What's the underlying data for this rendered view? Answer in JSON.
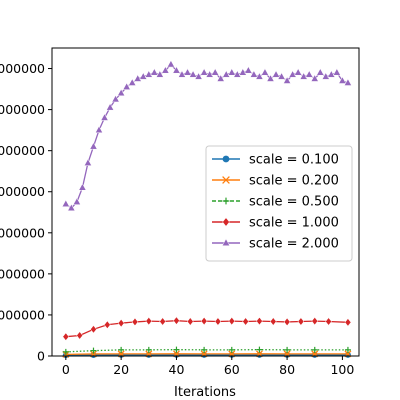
{
  "chart_data": {
    "type": "line",
    "title": "",
    "xlabel": "Iterations",
    "ylabel": "",
    "xlim": [
      -5,
      106
    ],
    "ylim": [
      0,
      7500000
    ],
    "x_ticks": [
      0,
      20,
      40,
      60,
      80,
      100
    ],
    "x_tick_labels": [
      "0",
      "20",
      "40",
      "60",
      "80",
      "100"
    ],
    "y_ticks": [
      0,
      1000000,
      2000000,
      3000000,
      4000000,
      5000000,
      6000000,
      7000000
    ],
    "y_tick_labels": [
      "0",
      "000000",
      "000000",
      "000000",
      "000000",
      "000000",
      "000000",
      "000000"
    ],
    "grid": false,
    "legend_placement": "center-right",
    "series": [
      {
        "name": "scale = 0.100",
        "color": "#1f77b4",
        "marker": "circle",
        "x": [
          0,
          10,
          20,
          30,
          40,
          50,
          60,
          70,
          80,
          90,
          102
        ],
        "y": [
          20000,
          25000,
          26000,
          26000,
          27000,
          26000,
          26000,
          27000,
          26000,
          26000,
          26000
        ]
      },
      {
        "name": "scale = 0.200",
        "color": "#ff7f0e",
        "marker": "x",
        "x": [
          0,
          10,
          20,
          30,
          40,
          50,
          60,
          70,
          80,
          90,
          102
        ],
        "y": [
          40000,
          50000,
          52000,
          52000,
          53000,
          52000,
          52000,
          53000,
          52000,
          52000,
          52000
        ]
      },
      {
        "name": "scale = 0.500",
        "color": "#2ca02c",
        "marker": "plus",
        "x": [
          0,
          10,
          20,
          30,
          40,
          50,
          60,
          70,
          80,
          90,
          102
        ],
        "y": [
          100000,
          130000,
          150000,
          150000,
          155000,
          150000,
          150000,
          155000,
          150000,
          150000,
          150000
        ]
      },
      {
        "name": "scale = 1.000",
        "color": "#d62728",
        "marker": "diamond",
        "x": [
          0,
          5,
          10,
          15,
          20,
          25,
          30,
          35,
          40,
          45,
          50,
          55,
          60,
          65,
          70,
          75,
          80,
          85,
          90,
          95,
          102
        ],
        "y": [
          470000,
          500000,
          650000,
          760000,
          800000,
          830000,
          850000,
          840000,
          860000,
          840000,
          850000,
          840000,
          850000,
          840000,
          850000,
          840000,
          830000,
          840000,
          850000,
          840000,
          820000
        ]
      },
      {
        "name": "scale = 2.000",
        "color": "#9467bd",
        "marker": "triangle",
        "x": [
          0,
          2,
          4,
          6,
          8,
          10,
          12,
          14,
          16,
          18,
          20,
          22,
          24,
          26,
          28,
          30,
          32,
          34,
          36,
          38,
          40,
          42,
          44,
          46,
          48,
          50,
          52,
          54,
          56,
          58,
          60,
          62,
          64,
          66,
          68,
          70,
          72,
          74,
          76,
          78,
          80,
          82,
          84,
          86,
          88,
          90,
          92,
          94,
          96,
          98,
          100,
          102
        ],
        "y": [
          3700000,
          3600000,
          3750000,
          4100000,
          4700000,
          5100000,
          5500000,
          5800000,
          6050000,
          6250000,
          6400000,
          6550000,
          6650000,
          6750000,
          6800000,
          6850000,
          6900000,
          6850000,
          6950000,
          7100000,
          6950000,
          6850000,
          6900000,
          6850000,
          6800000,
          6900000,
          6850000,
          6900000,
          6750000,
          6850000,
          6900000,
          6850000,
          6900000,
          6950000,
          6850000,
          6800000,
          6900000,
          6750000,
          6850000,
          6800000,
          6700000,
          6850000,
          6900000,
          6800000,
          6850000,
          6750000,
          6900000,
          6800000,
          6850000,
          6900000,
          6700000,
          6650000
        ]
      }
    ]
  }
}
